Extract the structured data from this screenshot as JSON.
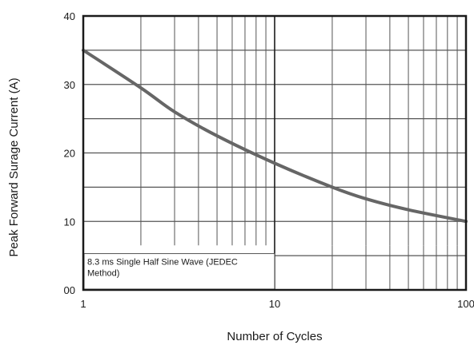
{
  "chart_data": {
    "type": "line",
    "title": "",
    "xlabel": "Number of Cycles",
    "ylabel": "Peak Forward Surage Current (A)",
    "x_scale": "log",
    "xlim": [
      1,
      100
    ],
    "ylim": [
      0,
      40
    ],
    "x_ticks": [
      {
        "value": 1,
        "label": "1"
      },
      {
        "value": 10,
        "label": "10"
      },
      {
        "value": 100,
        "label": "100"
      }
    ],
    "y_ticks": [
      {
        "value": 0,
        "label": "00"
      },
      {
        "value": 10,
        "label": "10"
      },
      {
        "value": 20,
        "label": "20"
      },
      {
        "value": 30,
        "label": "30"
      },
      {
        "value": 40,
        "label": "40"
      }
    ],
    "grid": true,
    "annotation": [
      "8.3 ms Single Half Sine Wave (JEDEC",
      "Method)"
    ],
    "series": [
      {
        "color": "#666666",
        "x": [
          1,
          2,
          3,
          5,
          10,
          20,
          30,
          50,
          100
        ],
        "y": [
          35,
          29.5,
          26,
          22.5,
          18.5,
          15,
          13.3,
          11.7,
          10
        ]
      }
    ]
  }
}
